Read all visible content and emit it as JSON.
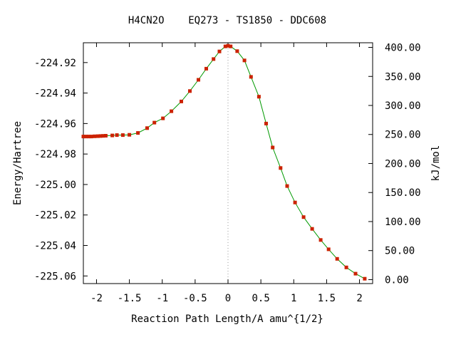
{
  "chart_data": {
    "type": "line",
    "title": "H4CN2O    EQ273 - TS1850 - DDC608",
    "xlabel": "Reaction Path Length/A amu^{1/2}",
    "ylabel": "Energy/Hartree",
    "y2label": "kJ/mol",
    "xlim": [
      -2.2,
      2.2
    ],
    "ylim": [
      -225.065,
      -224.907
    ],
    "x_ticks": [
      {
        "value": -2,
        "label": "-2"
      },
      {
        "value": -1.5,
        "label": "-1.5"
      },
      {
        "value": -1,
        "label": "-1"
      },
      {
        "value": -0.5,
        "label": "-0.5"
      },
      {
        "value": 0,
        "label": "0"
      },
      {
        "value": 0.5,
        "label": "0.5"
      },
      {
        "value": 1,
        "label": "1"
      },
      {
        "value": 1.5,
        "label": "1.5"
      },
      {
        "value": 2,
        "label": "2"
      }
    ],
    "y_ticks": [
      {
        "value": -224.92,
        "label": "-224.92"
      },
      {
        "value": -224.94,
        "label": "-224.94"
      },
      {
        "value": -224.96,
        "label": "-224.96"
      },
      {
        "value": -224.98,
        "label": "-224.98"
      },
      {
        "value": -225.0,
        "label": "-225.00"
      },
      {
        "value": -225.02,
        "label": "-225.02"
      },
      {
        "value": -225.04,
        "label": "-225.04"
      },
      {
        "value": -225.06,
        "label": "-225.06"
      }
    ],
    "y2_ticks": [
      {
        "value": 400,
        "label": "400.00"
      },
      {
        "value": 350,
        "label": "350.00"
      },
      {
        "value": 300,
        "label": "300.00"
      },
      {
        "value": 250,
        "label": "250.00"
      },
      {
        "value": 200,
        "label": "200.00"
      },
      {
        "value": 150,
        "label": "150.00"
      },
      {
        "value": 100,
        "label": "100.00"
      },
      {
        "value": 50,
        "label": "50.00"
      },
      {
        "value": 0,
        "label": "0.00"
      }
    ],
    "y2_reference": {
      "energy_at_zero": -225.0624,
      "hartree_to_kj": 2625.5
    },
    "ts_marker_x": 0,
    "grid": false,
    "line_color": "#009900",
    "marker_color": "#cc2200",
    "points": [
      {
        "x": -2.2,
        "y": -224.9685
      },
      {
        "x": -2.16,
        "y": -224.9685
      },
      {
        "x": -2.12,
        "y": -224.9685
      },
      {
        "x": -2.08,
        "y": -224.9685
      },
      {
        "x": -2.03,
        "y": -224.9684
      },
      {
        "x": -1.98,
        "y": -224.9683
      },
      {
        "x": -1.94,
        "y": -224.9682
      },
      {
        "x": -1.9,
        "y": -224.9681
      },
      {
        "x": -1.86,
        "y": -224.968
      },
      {
        "x": -1.76,
        "y": -224.9678
      },
      {
        "x": -1.69,
        "y": -224.9676
      },
      {
        "x": -1.6,
        "y": -224.9676
      },
      {
        "x": -1.5,
        "y": -224.9674
      },
      {
        "x": -1.37,
        "y": -224.9662
      },
      {
        "x": -1.23,
        "y": -224.963
      },
      {
        "x": -1.12,
        "y": -224.9594
      },
      {
        "x": -0.99,
        "y": -224.9566
      },
      {
        "x": -0.86,
        "y": -224.9519
      },
      {
        "x": -0.71,
        "y": -224.9455
      },
      {
        "x": -0.58,
        "y": -224.9387
      },
      {
        "x": -0.45,
        "y": -224.9313
      },
      {
        "x": -0.33,
        "y": -224.924
      },
      {
        "x": -0.22,
        "y": -224.9177
      },
      {
        "x": -0.13,
        "y": -224.9127
      },
      {
        "x": -0.04,
        "y": -224.9094
      },
      {
        "x": 0,
        "y": -224.909
      },
      {
        "x": 0.04,
        "y": -224.9094
      },
      {
        "x": 0.14,
        "y": -224.9125
      },
      {
        "x": 0.25,
        "y": -224.9186
      },
      {
        "x": 0.35,
        "y": -224.9294
      },
      {
        "x": 0.47,
        "y": -224.9424
      },
      {
        "x": 0.58,
        "y": -224.96
      },
      {
        "x": 0.68,
        "y": -224.9757
      },
      {
        "x": 0.8,
        "y": -224.9892
      },
      {
        "x": 0.9,
        "y": -225.001
      },
      {
        "x": 1.02,
        "y": -225.0118
      },
      {
        "x": 1.15,
        "y": -225.0214
      },
      {
        "x": 1.28,
        "y": -225.0291
      },
      {
        "x": 1.41,
        "y": -225.0364
      },
      {
        "x": 1.53,
        "y": -225.0425
      },
      {
        "x": 1.66,
        "y": -225.0488
      },
      {
        "x": 1.8,
        "y": -225.0544
      },
      {
        "x": 1.94,
        "y": -225.0585
      },
      {
        "x": 2.08,
        "y": -225.0618
      }
    ]
  }
}
